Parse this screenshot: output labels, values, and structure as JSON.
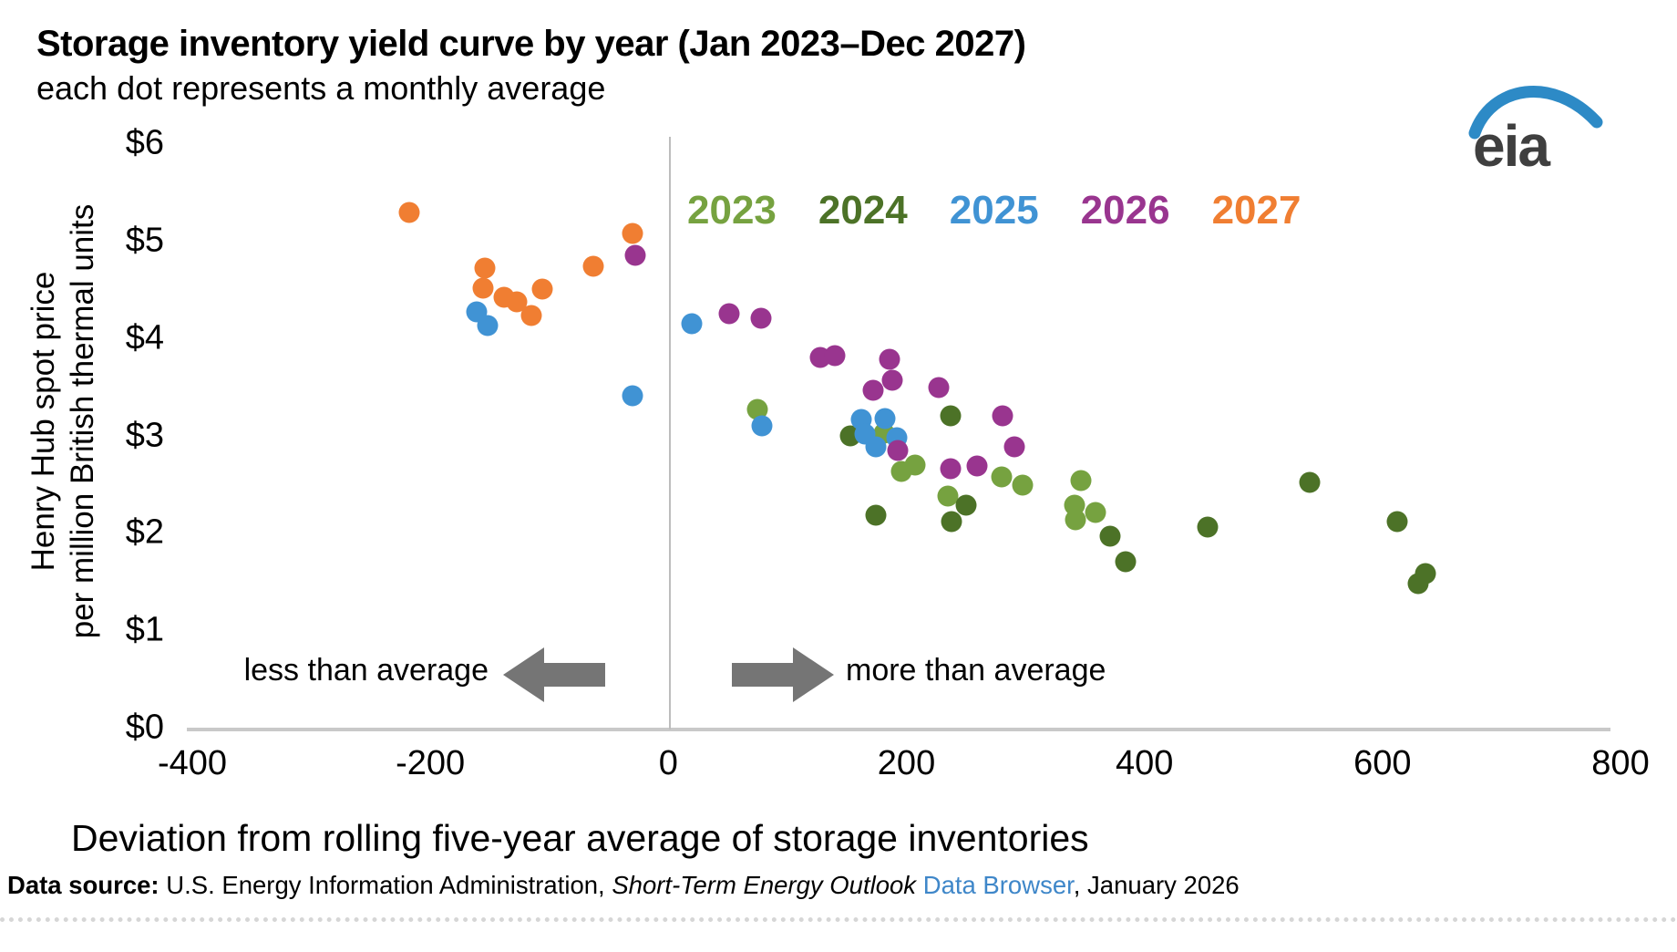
{
  "logo": {
    "text": "eia"
  },
  "footer": {
    "source_bold": "Data source:",
    "agency": " U.S. Energy Information Administration, ",
    "report_italic": "Short-Term Energy Outlook",
    "link": " Data Browser",
    "suffix": ", January 2026"
  },
  "chart_data": {
    "type": "scatter",
    "title": "Storage inventory yield curve by year (Jan 2023–Dec 2027)",
    "subtitle": "each dot represents a monthly average",
    "xlabel": "Deviation from rolling five-year average of storage inventories",
    "ylabel_line1": "Henry Hub spot price",
    "ylabel_line2": "per million British thermal units",
    "xlim": [
      -400,
      800
    ],
    "ylim": [
      0,
      6
    ],
    "x_ticks": [
      -400,
      -200,
      0,
      200,
      400,
      600,
      800
    ],
    "y_tick_labels": [
      "$0",
      "$1",
      "$2",
      "$3",
      "$4",
      "$5",
      "$6"
    ],
    "grid": false,
    "legend_position": "top-center",
    "annotations": {
      "left_of_zero": "less than average",
      "right_of_zero": "more than average"
    },
    "series": [
      {
        "name": "2023",
        "color": "#76a240",
        "points": [
          [
            75,
            3.27
          ],
          [
            181,
            3.02
          ],
          [
            196,
            2.63
          ],
          [
            207,
            2.7
          ],
          [
            235,
            2.38
          ],
          [
            280,
            2.57
          ],
          [
            298,
            2.49
          ],
          [
            347,
            2.54
          ],
          [
            341,
            2.28
          ],
          [
            342,
            2.13
          ],
          [
            359,
            2.21
          ]
        ]
      },
      {
        "name": "2024",
        "color": "#4c7227",
        "points": [
          [
            153,
            3.0
          ],
          [
            174,
            2.18
          ],
          [
            237,
            3.2
          ],
          [
            238,
            2.12
          ],
          [
            250,
            2.28
          ],
          [
            371,
            1.97
          ],
          [
            384,
            1.7
          ],
          [
            453,
            2.06
          ],
          [
            539,
            2.52
          ],
          [
            612,
            2.12
          ],
          [
            630,
            1.48
          ],
          [
            636,
            1.58
          ]
        ]
      },
      {
        "name": "2025",
        "color": "#4093d4",
        "points": [
          [
            -161,
            4.27
          ],
          [
            -152,
            4.13
          ],
          [
            -30,
            3.41
          ],
          [
            20,
            4.15
          ],
          [
            79,
            3.1
          ],
          [
            162,
            3.16
          ],
          [
            165,
            3.01
          ],
          [
            174,
            2.88
          ],
          [
            182,
            3.17
          ],
          [
            192,
            2.98
          ]
        ]
      },
      {
        "name": "2026",
        "color": "#99358f",
        "points": [
          [
            -28,
            4.85
          ],
          [
            51,
            4.25
          ],
          [
            78,
            4.2
          ],
          [
            128,
            3.8
          ],
          [
            140,
            3.82
          ],
          [
            172,
            3.46
          ],
          [
            186,
            3.78
          ],
          [
            188,
            3.57
          ],
          [
            193,
            2.85
          ],
          [
            227,
            3.49
          ],
          [
            237,
            2.66
          ],
          [
            259,
            2.69
          ],
          [
            281,
            3.2
          ],
          [
            291,
            2.88
          ]
        ]
      },
      {
        "name": "2027",
        "color": "#f07e32",
        "points": [
          [
            -218,
            5.29
          ],
          [
            -156,
            4.51
          ],
          [
            -154,
            4.72
          ],
          [
            -138,
            4.42
          ],
          [
            -127,
            4.37
          ],
          [
            -115,
            4.23
          ],
          [
            -106,
            4.5
          ],
          [
            -63,
            4.74
          ],
          [
            -30,
            5.07
          ]
        ]
      }
    ]
  }
}
